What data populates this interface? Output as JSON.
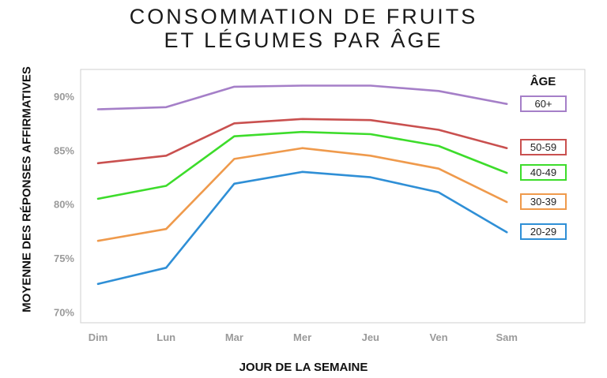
{
  "title_line1": "CONSOMMATION DE FRUITS",
  "title_line2": "ET LÉGUMES PAR ÂGE",
  "chart_data": {
    "type": "line",
    "title": "CONSOMMATION DE FRUITS ET LÉGUMES PAR ÂGE",
    "xlabel": "JOUR DE LA SEMAINE",
    "ylabel": "MOYENNE DES RÉPONSES AFFIRMATIVES",
    "categories": [
      "Dim",
      "Lun",
      "Mar",
      "Mer",
      "Jeu",
      "Ven",
      "Sam"
    ],
    "ylim": [
      69,
      92.5
    ],
    "yticks": [
      70,
      75,
      80,
      85,
      90
    ],
    "ytick_labels": [
      "70%",
      "75%",
      "80%",
      "85%",
      "90%"
    ],
    "legend_title": "ÂGE",
    "legend_position": "right",
    "grid": true,
    "series": [
      {
        "name": "60+",
        "color": "#a57fc8",
        "values": [
          88.8,
          89.0,
          90.9,
          91.0,
          91.0,
          90.5,
          89.3
        ]
      },
      {
        "name": "50-59",
        "color": "#c9504f",
        "values": [
          83.8,
          84.5,
          87.5,
          87.9,
          87.8,
          86.9,
          85.2
        ]
      },
      {
        "name": "40-49",
        "color": "#3ddc2b",
        "values": [
          80.5,
          81.7,
          86.3,
          86.7,
          86.5,
          85.4,
          82.9
        ]
      },
      {
        "name": "30-39",
        "color": "#ef9a4c",
        "values": [
          76.6,
          77.7,
          84.2,
          85.2,
          84.5,
          83.3,
          80.2
        ]
      },
      {
        "name": "20-29",
        "color": "#2f8fd6",
        "values": [
          72.6,
          74.1,
          81.9,
          83.0,
          82.5,
          81.1,
          77.4
        ]
      }
    ]
  }
}
